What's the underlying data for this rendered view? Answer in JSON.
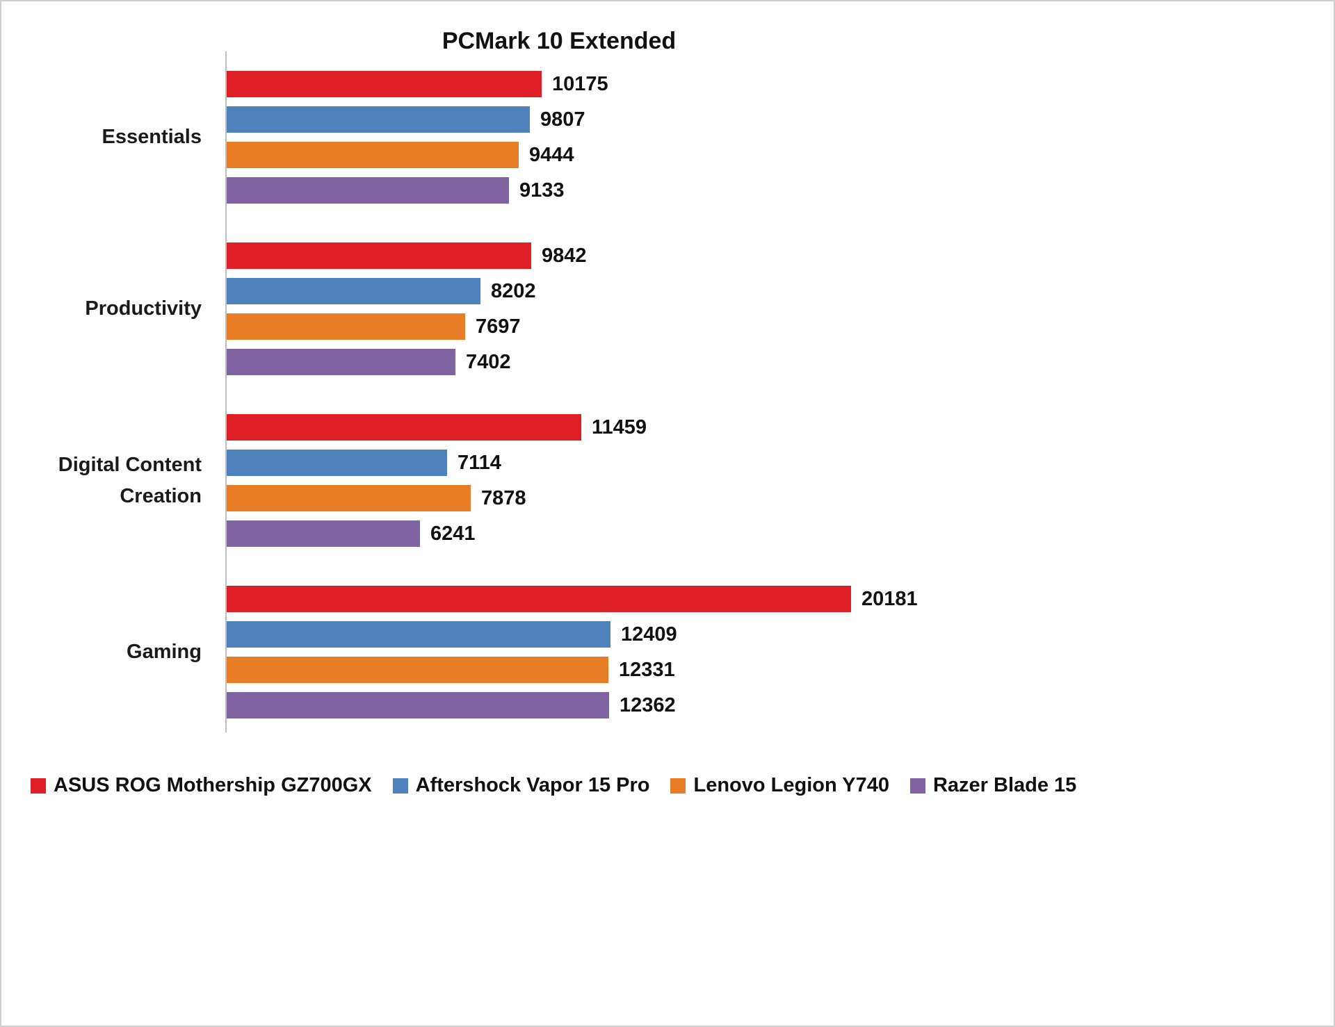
{
  "chart_data": {
    "type": "bar",
    "orientation": "horizontal",
    "title": "PCMark 10 Extended",
    "categories": [
      "Essentials",
      "Productivity",
      "Digital Content Creation",
      "Gaming"
    ],
    "series": [
      {
        "name": "ASUS ROG Mothership GZ700GX",
        "color": "#df1f26",
        "values": [
          10175,
          9842,
          11459,
          20181
        ]
      },
      {
        "name": "Aftershock Vapor 15 Pro",
        "color": "#4f81bd",
        "values": [
          9807,
          8202,
          7114,
          12409
        ]
      },
      {
        "name": "Lenovo Legion Y740",
        "color": "#e87d27",
        "values": [
          9444,
          7697,
          7878,
          12331
        ]
      },
      {
        "name": "Razer Blade 15",
        "color": "#8064a2",
        "values": [
          9133,
          7402,
          6241,
          12362
        ]
      }
    ],
    "xlim": [
      0,
      20181
    ],
    "value_labels": true,
    "grid": false,
    "legend_position": "bottom",
    "axis_line_color": "#bfbfbf"
  }
}
